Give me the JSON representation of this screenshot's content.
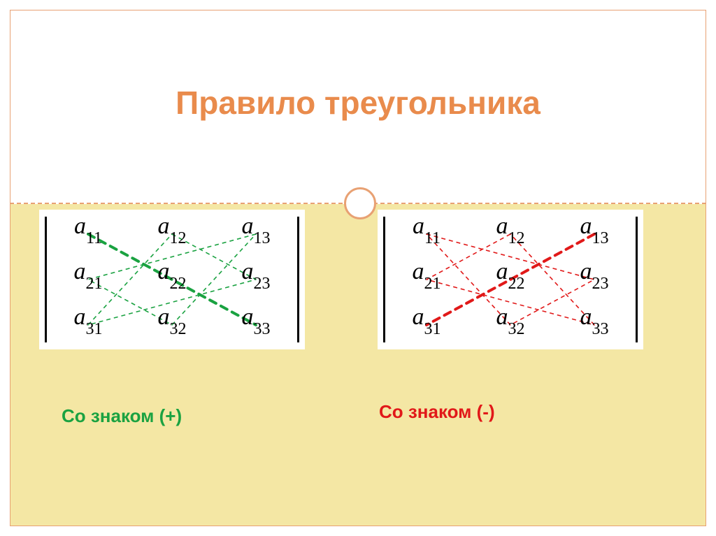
{
  "title": "Правило треугольника",
  "title_color": "#e98b4c",
  "frame_border_color": "#e8a173",
  "band_bg": "#f4e7a4",
  "matrix_bg": "#ffffff",
  "matrix_labels": {
    "var": "a",
    "rows": [
      "1",
      "2",
      "3"
    ],
    "cols": [
      "1",
      "2",
      "3"
    ]
  },
  "captions": {
    "plus": {
      "text": "Со знаком (+)",
      "color": "#1aa241"
    },
    "minus": {
      "text": "Со знаком (-)",
      "color": "#e11919"
    }
  },
  "diagram": {
    "cell_centers_x": [
      70,
      190,
      310
    ],
    "cell_centers_y": [
      35,
      100,
      165
    ],
    "plus": {
      "diag_color": "#1aa241",
      "diag_width": 4,
      "tri_color": "#1aa241",
      "tri_width": 1.6,
      "tri_dash": "6,5"
    },
    "minus": {
      "diag_color": "#e11919",
      "diag_width": 4,
      "tri_color": "#e11919",
      "tri_width": 1.6,
      "tri_dash": "6,5"
    }
  }
}
